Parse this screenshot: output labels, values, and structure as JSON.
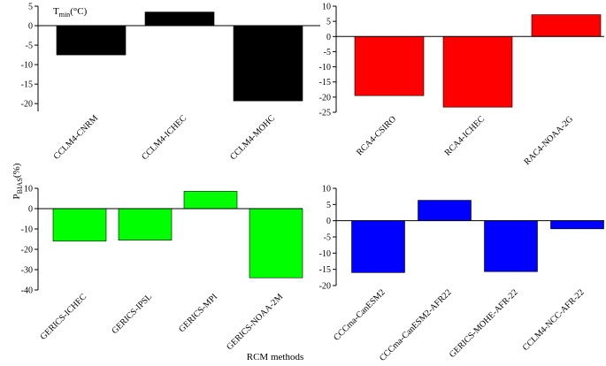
{
  "figure": {
    "ylabel_main": "P",
    "ylabel_sub": "BIAS",
    "ylabel_unit": "(%)",
    "xlabel": "RCM methods"
  },
  "annotation": {
    "main": "T",
    "sub": "min",
    "unit": "(°C)"
  },
  "chart_data": [
    {
      "type": "bar",
      "categories": [
        "CCLM4-CNRM",
        "CCLM4-ICHEC",
        "CCLM4-MOHC"
      ],
      "values": [
        -7.5,
        3.5,
        -19.3
      ],
      "ylim": [
        -22,
        5
      ],
      "yticks": [
        5,
        0,
        -5,
        -10,
        -15,
        -20
      ],
      "color": "#000000"
    },
    {
      "type": "bar",
      "categories": [
        "RCA4-CSIRO",
        "RCA4-ICHEC",
        "RAC4-NOAA-2G"
      ],
      "values": [
        -19.5,
        -23.3,
        7.2
      ],
      "ylim": [
        -25,
        10
      ],
      "yticks": [
        10,
        5,
        0,
        -5,
        -10,
        -15,
        -20,
        -25
      ],
      "color": "#ff0000"
    },
    {
      "type": "bar",
      "categories": [
        "GERICS-ICHEC",
        "GERICS-IPSL",
        "GERICS-MPI",
        "GERICS-NOAA-2M"
      ],
      "values": [
        -16,
        -15.5,
        8.5,
        -34
      ],
      "ylim": [
        -40,
        10
      ],
      "yticks": [
        10,
        0,
        -10,
        -20,
        -30,
        -40
      ],
      "color": "#00ff00"
    },
    {
      "type": "bar",
      "categories": [
        "CCCma-CanESM2",
        "CCCma-CanESM2-AFR22",
        "GERICS-MOHE-AFR-22",
        "CCLM4-NCC-AFR-22"
      ],
      "values": [
        -16,
        6.3,
        -15.7,
        -2.5
      ],
      "ylim": [
        -20,
        10
      ],
      "yticks": [
        10,
        5,
        0,
        -5,
        -10,
        -15,
        -20
      ],
      "color": "#0000ff"
    }
  ]
}
